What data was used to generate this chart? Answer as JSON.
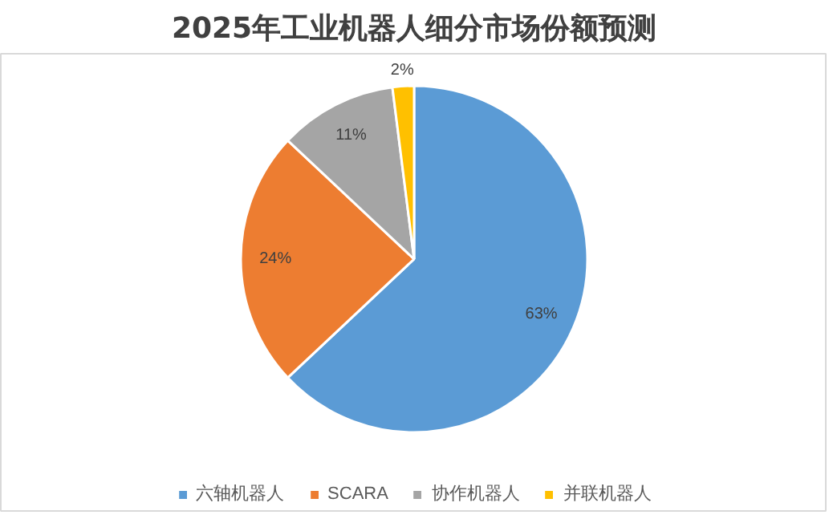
{
  "chart_data": {
    "type": "pie",
    "title": "2025年工业机器人细分市场份额预测",
    "categories": [
      "六轴机器人",
      "SCARA",
      "协作机器人",
      "并联机器人"
    ],
    "values": [
      63,
      24,
      11,
      2
    ],
    "colors": [
      "#5b9bd5",
      "#ed7d31",
      "#a5a5a5",
      "#ffc000"
    ],
    "value_labels": [
      "63%",
      "24%",
      "11%",
      "2%"
    ],
    "legend": "bottom"
  }
}
